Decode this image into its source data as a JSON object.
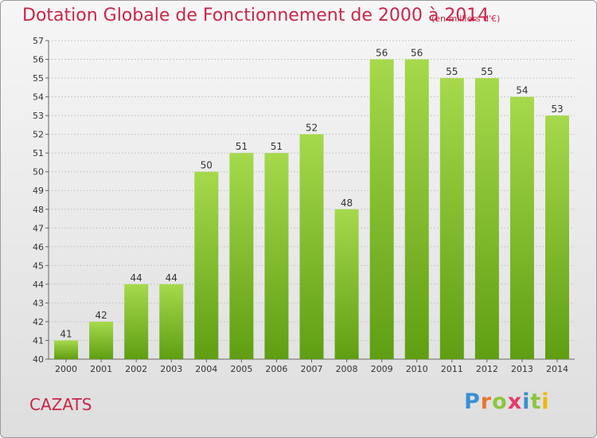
{
  "title": "Dotation Globale de Fonctionnement de 2000 à 2014",
  "unit_note": "(en milliers d'€)",
  "commune": "CAZATS",
  "logo": {
    "text": "Proxiti",
    "letters": [
      {
        "ch": "P",
        "color": "#3b8fd4"
      },
      {
        "ch": "r",
        "color": "#e8762b"
      },
      {
        "ch": "o",
        "color": "#8cc63f"
      },
      {
        "ch": "x",
        "color": "#e23a6b"
      },
      {
        "ch": "i",
        "color": "#3b8fd4"
      },
      {
        "ch": "t",
        "color": "#8cc63f"
      },
      {
        "ch": "i",
        "color": "#f2b705"
      }
    ]
  },
  "colors": {
    "bar_light": "#a6d94c",
    "bar_dark": "#5f9e12",
    "grid": "#c8c8c8",
    "title": "#c8264a"
  },
  "chart_data": {
    "type": "bar",
    "categories": [
      "2000",
      "2001",
      "2002",
      "2003",
      "2004",
      "2005",
      "2006",
      "2007",
      "2008",
      "2009",
      "2010",
      "2011",
      "2012",
      "2013",
      "2014"
    ],
    "values": [
      41,
      42,
      44,
      44,
      50,
      51,
      51,
      52,
      48,
      56,
      56,
      55,
      55,
      54,
      53
    ],
    "ylim": [
      40,
      57
    ],
    "yticks": [
      40,
      41,
      42,
      43,
      44,
      45,
      46,
      47,
      48,
      49,
      50,
      51,
      52,
      53,
      54,
      55,
      56,
      57
    ],
    "grid": true,
    "data_labels": true
  }
}
